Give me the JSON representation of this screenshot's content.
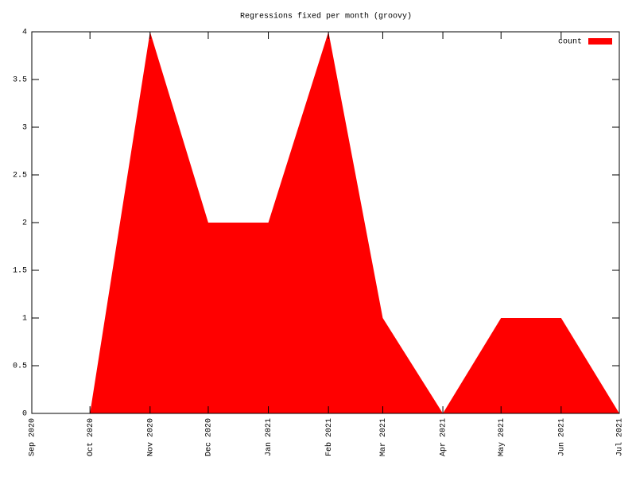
{
  "chart_data": {
    "type": "area",
    "title": "Regressions fixed per month (groovy)",
    "x": [
      "Oct 2020",
      "Nov 2020",
      "Dec 2020",
      "Jan 2021",
      "Feb 2021",
      "Mar 2021",
      "Apr 2021",
      "May 2021",
      "Jun 2021",
      "Jul 2021"
    ],
    "series": [
      {
        "name": "count",
        "color": "#ff0000",
        "values": [
          0,
          4,
          2,
          2,
          4,
          1,
          0,
          1,
          1,
          0
        ]
      }
    ],
    "xlim": [
      "Sep 2020",
      "Jul 2021"
    ],
    "xticks": [
      "Sep 2020",
      "Oct 2020",
      "Nov 2020",
      "Dec 2020",
      "Jan 2021",
      "Feb 2021",
      "Mar 2021",
      "Apr 2021",
      "May 2021",
      "Jun 2021",
      "Jul 2021"
    ],
    "ylim": [
      0,
      4
    ],
    "yticks": [
      0,
      0.5,
      1,
      1.5,
      2,
      2.5,
      3,
      3.5,
      4
    ],
    "legend": "top-right"
  }
}
